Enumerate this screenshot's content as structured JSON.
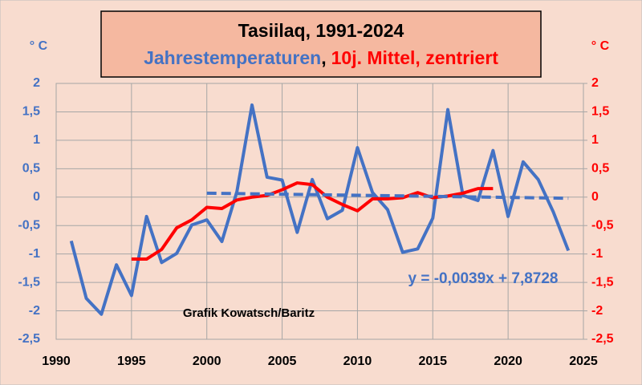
{
  "chart_data": {
    "type": "line",
    "title": "Tasiilaq, 1991-2024",
    "title_separator": ",",
    "y_label": "° C",
    "y2_label": "° C",
    "annotations": [
      "y = -0,0039x + 7,8728",
      "Grafik Kowatsch/Baritz"
    ],
    "xlim": [
      1990,
      2025
    ],
    "xticks": [
      1990,
      1995,
      2000,
      2005,
      2010,
      2015,
      2020,
      2025
    ],
    "ylim": [
      -2.5,
      2
    ],
    "yticks": [
      2,
      {
        "value": 1.5,
        "label": "1,5"
      },
      1,
      {
        "value": 0.5,
        "label": "0,5"
      },
      0,
      {
        "value": -0.5,
        "label": "-0,5"
      },
      -1,
      {
        "value": -1.5,
        "label": "-1,5"
      },
      -2,
      {
        "value": -2.5,
        "label": "-2,5"
      }
    ],
    "y2lim": [
      -2.5,
      2
    ],
    "y2ticks": [
      2,
      {
        "value": 1.5,
        "label": "1,5"
      },
      1,
      {
        "value": 0.5,
        "label": "0,5"
      },
      0,
      {
        "value": -0.5,
        "label": "-0,5"
      },
      -1,
      {
        "value": -1.5,
        "label": "-1,5"
      },
      -2,
      {
        "value": -2.5,
        "label": "-2,5"
      }
    ],
    "grid": true,
    "y_color": "#4472c4",
    "y2_color": "#ff0000",
    "series": [
      {
        "name": "Jahrestemperaturen",
        "color": "#4472c4",
        "x": [
          1991,
          1992,
          1993,
          1994,
          1995,
          1996,
          1997,
          1998,
          1999,
          2000,
          2001,
          2002,
          2003,
          2004,
          2005,
          2006,
          2007,
          2008,
          2009,
          2010,
          2011,
          2012,
          2013,
          2014,
          2015,
          2016,
          2017,
          2018,
          2019,
          2020,
          2021,
          2022,
          2023,
          2024
        ],
        "values": [
          -0.77,
          -1.78,
          -2.06,
          -1.19,
          -1.73,
          -0.34,
          -1.15,
          -0.99,
          -0.49,
          -0.4,
          -0.78,
          0.1,
          1.62,
          0.35,
          0.3,
          -0.62,
          0.31,
          -0.38,
          -0.23,
          0.87,
          0.08,
          -0.22,
          -0.97,
          -0.91,
          -0.37,
          1.54,
          0.03,
          -0.06,
          0.82,
          -0.34,
          0.62,
          0.31,
          -0.26,
          -0.94
        ]
      },
      {
        "name": "10j. Mittel, zentriert",
        "color": "#ff0000",
        "axis": "y2",
        "x": [
          1995,
          1996,
          1997,
          1998,
          1999,
          2000,
          2001,
          2002,
          2003,
          2004,
          2005,
          2006,
          2007,
          2008,
          2009,
          2010,
          2011,
          2012,
          2013,
          2014,
          2015,
          2016,
          2017,
          2018,
          2019
        ],
        "values": [
          -1.09,
          -1.09,
          -0.92,
          -0.54,
          -0.4,
          -0.18,
          -0.2,
          -0.05,
          0.0,
          0.03,
          0.13,
          0.25,
          0.22,
          0.0,
          -0.13,
          -0.24,
          -0.03,
          -0.03,
          -0.01,
          0.08,
          -0.01,
          0.02,
          0.07,
          0.15,
          0.15
        ]
      },
      {
        "color": "#4472c4",
        "dashed": true,
        "x": [
          2000,
          2024
        ],
        "values": [
          0.07,
          -0.02
        ]
      }
    ]
  }
}
